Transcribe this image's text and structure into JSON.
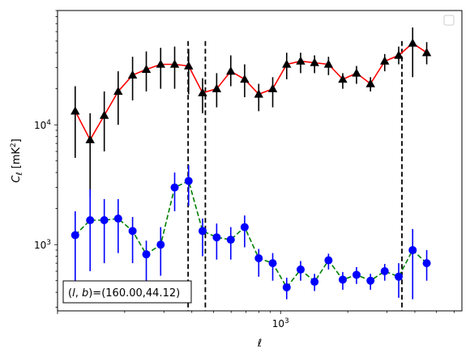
{
  "chart_data": {
    "type": "line",
    "xscale": "log",
    "yscale": "log",
    "xlabel": "ℓ",
    "ylabel": "C_ℓ  [mK²]",
    "xlim": [
      100,
      6500
    ],
    "ylim": [
      280,
      90000
    ],
    "x_tick_labels": [
      {
        "value": 1000,
        "base": "10",
        "exp": "3"
      }
    ],
    "y_tick_labels": [
      {
        "value": 1000,
        "base": "10",
        "exp": "3"
      },
      {
        "value": 10000,
        "base": "10",
        "exp": "4"
      }
    ],
    "grid": false,
    "legend": {
      "placement": "top-right",
      "entries": []
    },
    "vlines": [
      385,
      460,
      3500
    ],
    "annotation": "(l, b)=(160.00,44.12)",
    "annotation_parts": {
      "l": "l",
      "b": "b",
      "values": ")=(160.00,44.12)"
    },
    "series": [
      {
        "line_color": "#ff0000",
        "marker_color": "#000000",
        "marker": "triangle",
        "line_style": "solid",
        "x": [
          120,
          140,
          162,
          187,
          217,
          250,
          290,
          335,
          387,
          447,
          517,
          598,
          690,
          798,
          922,
          1065,
          1230,
          1420,
          1640,
          1900,
          2190,
          2530,
          2930,
          3385,
          3910,
          4520
        ],
        "y": [
          13000,
          7500,
          12000,
          19000,
          26000,
          29000,
          32000,
          32000,
          31000,
          18500,
          20000,
          28000,
          24000,
          18000,
          20000,
          32000,
          34000,
          33000,
          32000,
          24000,
          27000,
          22000,
          34000,
          38000,
          48000,
          40000
        ],
        "err_low": [
          7700,
          5000,
          6000,
          9000,
          10000,
          10000,
          12000,
          12000,
          13000,
          6000,
          6000,
          7000,
          7000,
          5000,
          6000,
          8000,
          7000,
          6000,
          6000,
          4000,
          5000,
          3000,
          6000,
          6000,
          23000,
          8000
        ],
        "err_high": [
          8000,
          5000,
          7000,
          9000,
          11000,
          12000,
          12000,
          13000,
          12000,
          6000,
          7000,
          10000,
          8000,
          4000,
          5000,
          8000,
          6000,
          5000,
          5000,
          3000,
          4000,
          3000,
          5000,
          7000,
          17000,
          9000
        ]
      },
      {
        "line_color": "#008000",
        "marker_color": "#0000ff",
        "marker": "circle",
        "line_style": "dashed",
        "x": [
          120,
          140,
          162,
          187,
          217,
          250,
          290,
          335,
          387,
          447,
          517,
          598,
          690,
          798,
          922,
          1065,
          1230,
          1420,
          1640,
          1900,
          2190,
          2530,
          2930,
          3385,
          3910,
          4520
        ],
        "y": [
          1200,
          1600,
          1600,
          1650,
          1300,
          830,
          1000,
          3000,
          3400,
          1300,
          1150,
          1100,
          1400,
          770,
          700,
          440,
          620,
          490,
          740,
          510,
          560,
          500,
          600,
          540,
          900,
          700
        ],
        "err_low": [
          700,
          1000,
          900,
          800,
          600,
          350,
          450,
          1100,
          1300,
          500,
          400,
          350,
          450,
          230,
          200,
          90,
          120,
          80,
          120,
          90,
          90,
          80,
          100,
          180,
          550,
          200
        ],
        "err_high": [
          700,
          1300,
          800,
          750,
          400,
          250,
          400,
          1000,
          1200,
          350,
          350,
          300,
          350,
          150,
          150,
          90,
          110,
          80,
          100,
          80,
          90,
          70,
          90,
          160,
          450,
          200
        ]
      }
    ]
  }
}
